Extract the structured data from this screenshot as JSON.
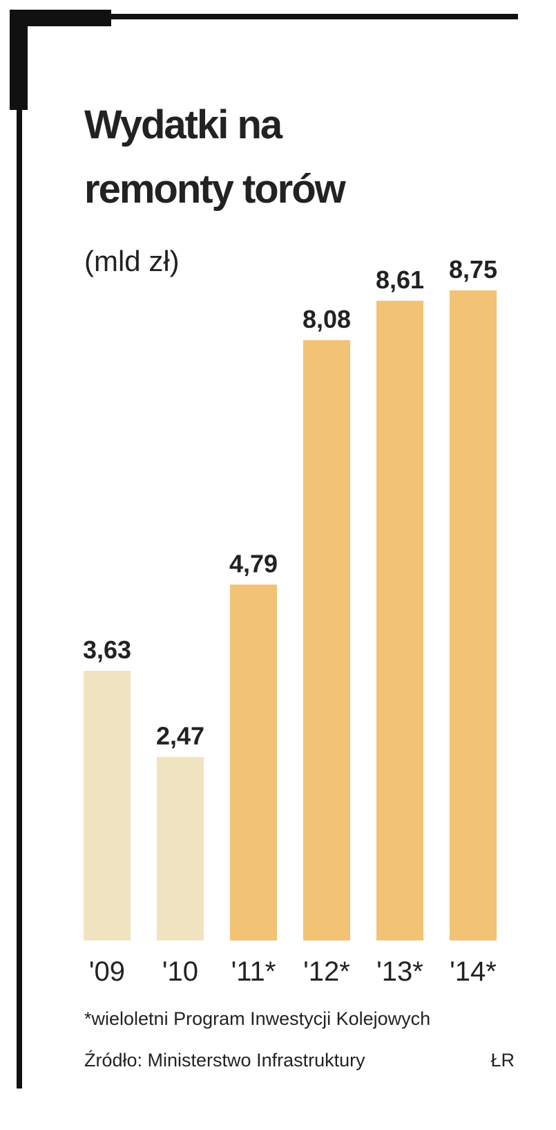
{
  "chart_data": {
    "type": "bar",
    "title": [
      "Wydatki na",
      "remonty torów"
    ],
    "subtitle": "(mld zł)",
    "categories": [
      "'09",
      "'10",
      "'11*",
      "'12*",
      "'13*",
      "'14*"
    ],
    "values": [
      3.63,
      2.47,
      4.79,
      8.08,
      8.61,
      8.75
    ],
    "value_labels": [
      "3,63",
      "2,47",
      "4,79",
      "8,08",
      "8,61",
      "8,75"
    ],
    "colors": [
      "#f0e3c0",
      "#f0e3c0",
      "#f2c275",
      "#f2c275",
      "#f2c275",
      "#f2c275"
    ],
    "ylim": [
      0,
      9
    ],
    "footnote": "*wieloletni Program Inwestycji Kolejowych",
    "source": "Źródło: Ministerstwo Infrastruktury",
    "credit": "ŁR"
  }
}
